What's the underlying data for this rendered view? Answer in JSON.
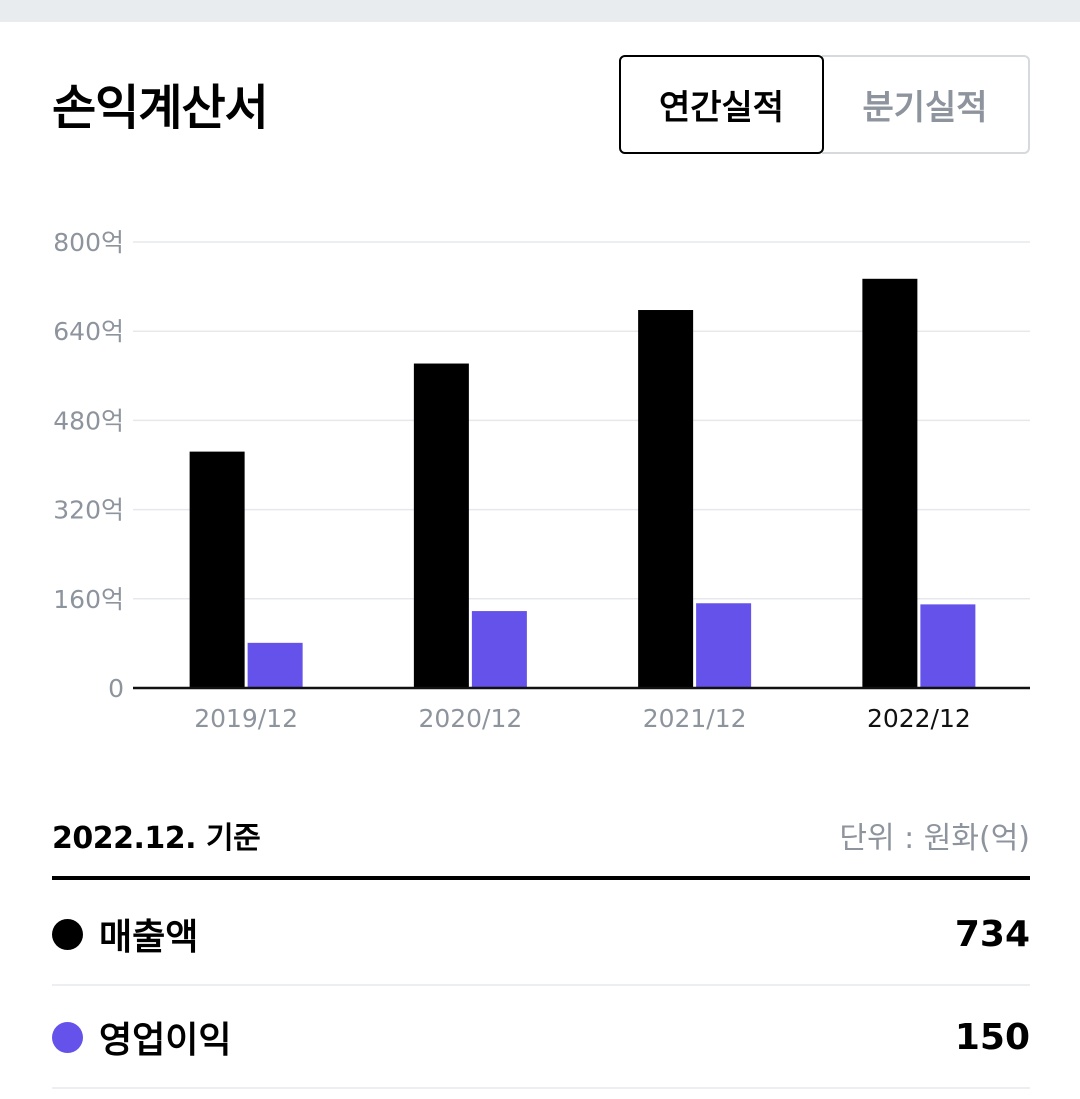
{
  "header": {
    "title": "손익계산서",
    "tabs": [
      {
        "label": "연간실적",
        "active": true
      },
      {
        "label": "분기실적",
        "active": false
      }
    ]
  },
  "chart_data": {
    "type": "bar",
    "categories": [
      "2019/12",
      "2020/12",
      "2021/12",
      "2022/12"
    ],
    "highlighted_category": "2022/12",
    "series": [
      {
        "name": "매출액",
        "color": "#000000",
        "values": [
          424,
          582,
          678,
          734
        ]
      },
      {
        "name": "영업이익",
        "color": "#6452ea",
        "values": [
          81,
          138,
          152,
          150
        ]
      }
    ],
    "yticks": [
      "0",
      "160억",
      "320억",
      "480억",
      "640억",
      "800억"
    ],
    "ylim": [
      0,
      800
    ],
    "grid": true,
    "title": "",
    "xlabel": "",
    "ylabel": ""
  },
  "summary": {
    "basis": "2022.12. 기준",
    "unit": "단위 : 원화(억)",
    "rows": [
      {
        "label": "매출액",
        "value": "734",
        "color": "#000000"
      },
      {
        "label": "영업이익",
        "value": "150",
        "color": "#6452ea"
      }
    ]
  }
}
